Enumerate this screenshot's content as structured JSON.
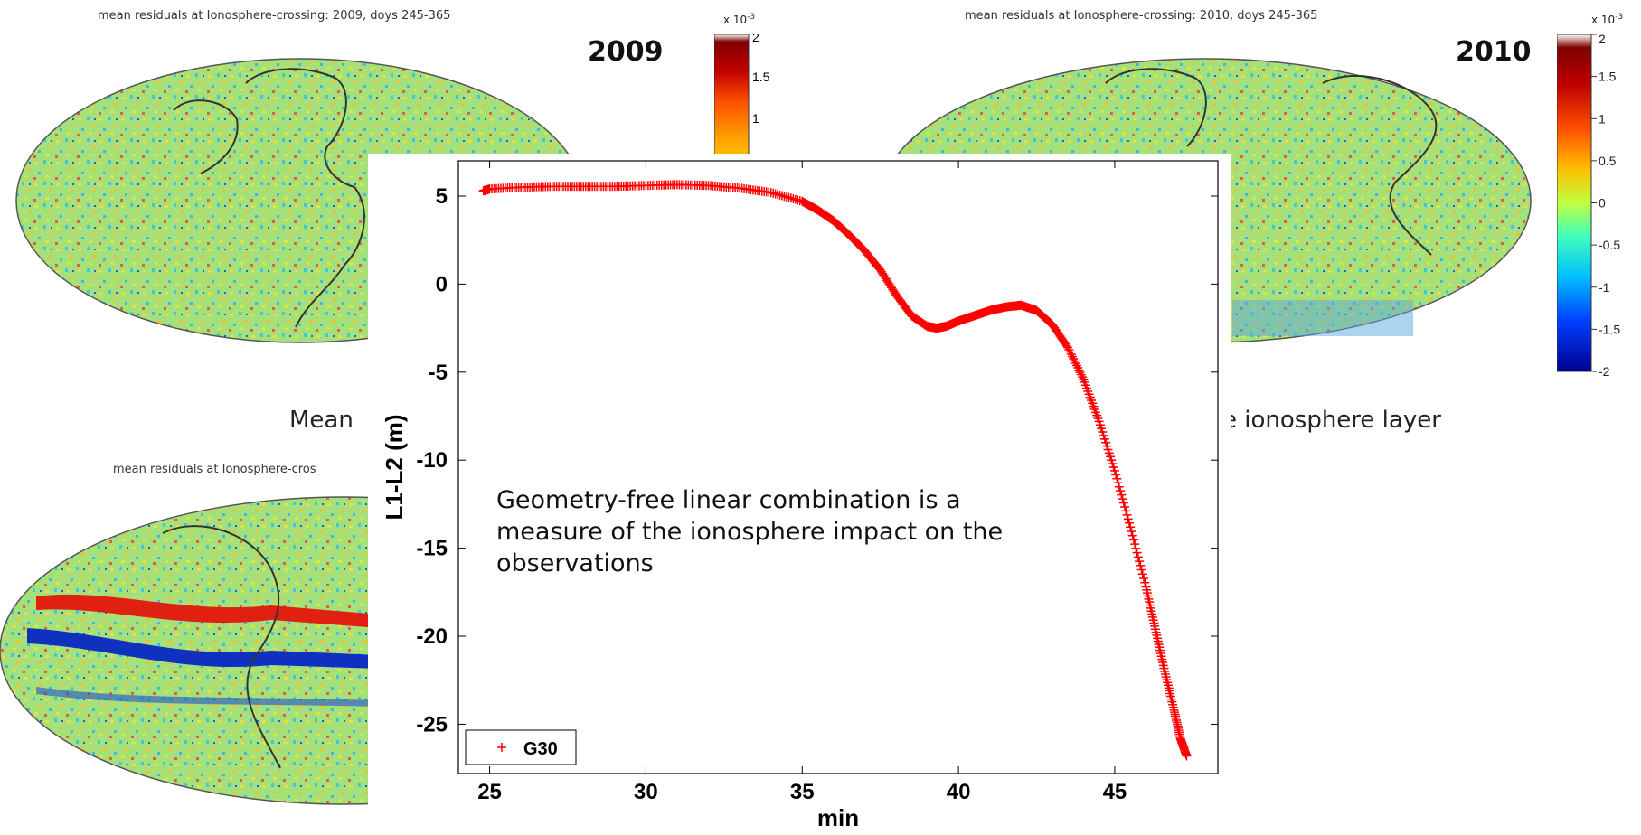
{
  "maps": [
    {
      "title": "mean residuals at Ionosphere-crossing: 2009, doys 245-365",
      "year": "2009"
    },
    {
      "title": "mean residuals at Ionosphere-crossing: 2010, doys 245-365",
      "year": "2010"
    },
    {
      "title": "mean residuals at Ionosphere-cros"
    }
  ],
  "colorbar": {
    "exponent_base": "x 10",
    "exponent_power": "-3",
    "left_ticks": [
      "2",
      "1.5",
      "1"
    ],
    "right_ticks": [
      "2",
      "1.5",
      "1",
      "0.5",
      "0",
      "-0.5",
      "-1",
      "-1.5",
      "-2"
    ],
    "colors": [
      "#00008f",
      "#0050ff",
      "#00dfff",
      "#60ff9f",
      "#dfff20",
      "#ffbf00",
      "#ff5000",
      "#c00000",
      "#7f0000"
    ]
  },
  "captions": {
    "left": "Mean",
    "right": "e ionosphere layer"
  },
  "overlay_text": "Geometry-free linear combination is a measure of the ionosphere impact on the observations",
  "chart_data": {
    "type": "scatter",
    "title": "",
    "xlabel": "min",
    "ylabel": "L1-L2 (m)",
    "xlim": [
      24,
      48.3
    ],
    "ylim": [
      -27.8,
      7
    ],
    "xticks": [
      25,
      30,
      35,
      40,
      45
    ],
    "yticks": [
      5,
      0,
      -5,
      -10,
      -15,
      -20,
      -25
    ],
    "legend": "bottom-left",
    "grid": false,
    "series": [
      {
        "name": "G30",
        "color": "#ff0000",
        "marker": "+",
        "x": [
          24.8,
          25,
          26,
          27,
          28,
          29,
          30,
          31,
          32,
          33,
          34,
          35,
          35.5,
          36,
          36.5,
          37,
          37.5,
          38,
          38.5,
          39,
          39.3,
          39.6,
          40,
          40.5,
          41,
          41.5,
          42,
          42.5,
          43,
          43.5,
          44,
          44.5,
          45,
          45.5,
          46,
          46.3,
          46.6,
          46.9,
          47.1,
          47.3
        ],
        "y": [
          5.3,
          5.4,
          5.5,
          5.55,
          5.55,
          5.55,
          5.6,
          5.65,
          5.6,
          5.45,
          5.2,
          4.7,
          4.2,
          3.6,
          2.8,
          1.9,
          0.8,
          -0.6,
          -1.8,
          -2.4,
          -2.5,
          -2.4,
          -2.1,
          -1.8,
          -1.5,
          -1.3,
          -1.2,
          -1.5,
          -2.3,
          -3.6,
          -5.4,
          -7.8,
          -10.6,
          -13.8,
          -17.2,
          -19.6,
          -22.0,
          -24.2,
          -25.8,
          -26.8
        ]
      }
    ]
  }
}
